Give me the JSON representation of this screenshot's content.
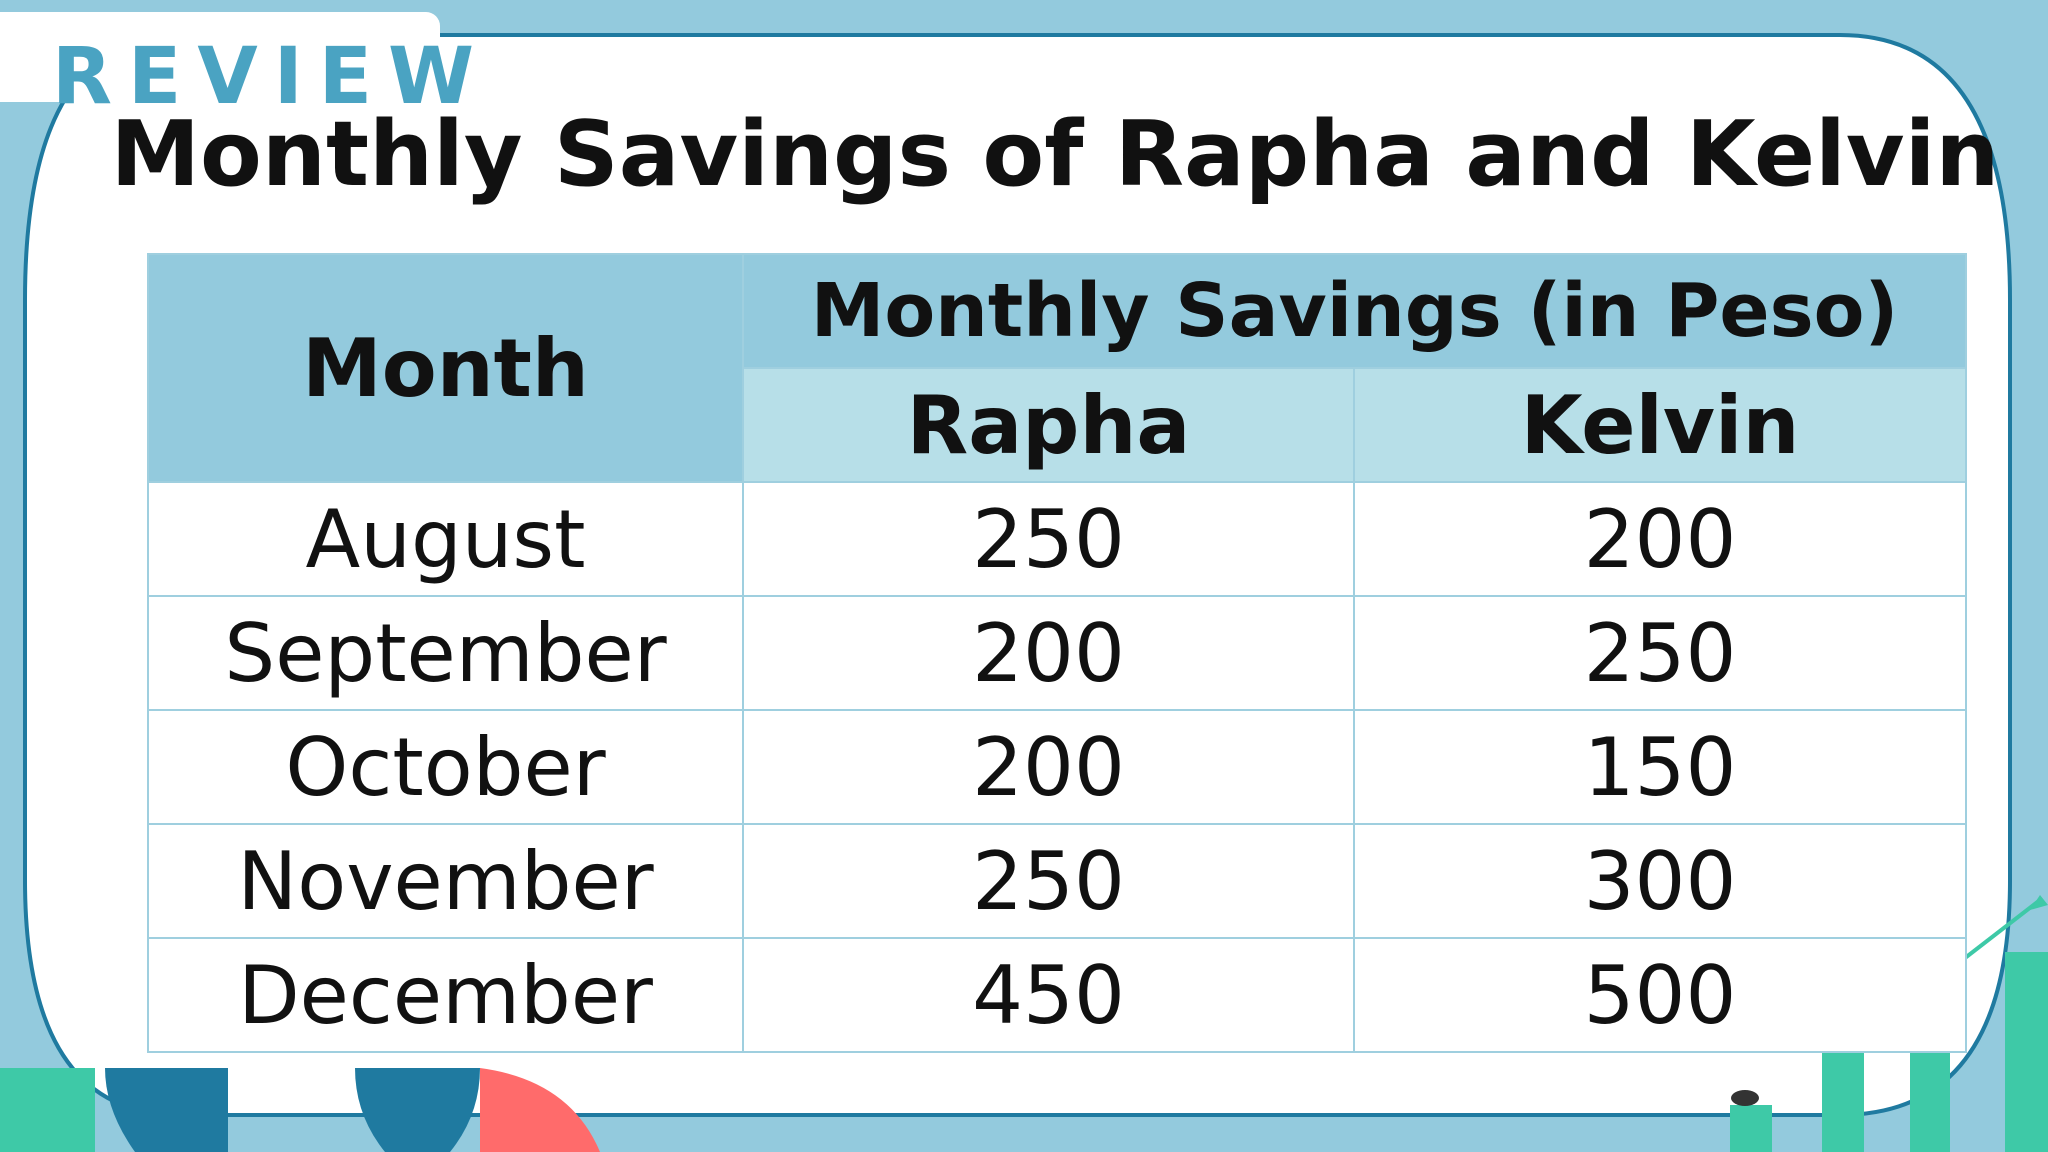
{
  "header": {
    "review_label": "REVIEW",
    "title": "Monthly Savings of Rapha and Kelvin"
  },
  "table": {
    "month_header": "Month",
    "group_header": "Monthly Savings (in Peso)",
    "person_headers": [
      "Rapha",
      "Kelvin"
    ],
    "rows": [
      {
        "month": "August",
        "rapha": "250",
        "kelvin": "200"
      },
      {
        "month": "September",
        "rapha": "200",
        "kelvin": "250"
      },
      {
        "month": "October",
        "rapha": "200",
        "kelvin": "150"
      },
      {
        "month": "November",
        "rapha": "250",
        "kelvin": "300"
      },
      {
        "month": "December",
        "rapha": "450",
        "kelvin": "500"
      }
    ]
  },
  "colors": {
    "background": "#93cadd",
    "header_dark": "#93cadd",
    "header_light": "#b7dfe8",
    "review_accent": "#4aa3c2",
    "teal_bar": "#3ec9a7",
    "navy_shape": "#1f7aa0",
    "coral_shape": "#ff6b6b"
  }
}
